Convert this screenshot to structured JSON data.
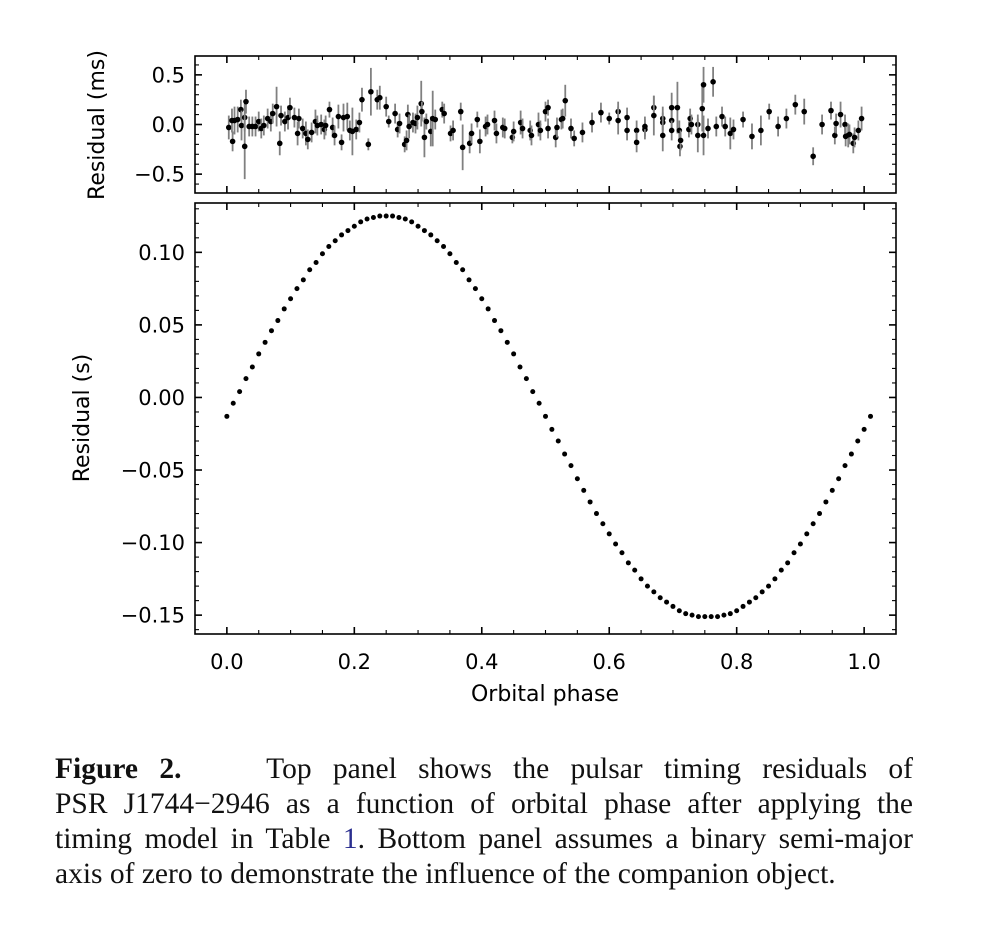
{
  "chart_data": [
    {
      "type": "scatter",
      "panel": "top",
      "ylabel": "Residual (ms)",
      "xlabel": "",
      "xlim": [
        -0.05,
        1.05
      ],
      "ylim": [
        -0.69,
        0.69
      ],
      "yticks": [
        "0.5",
        "0.0",
        "−0.5"
      ],
      "ytick_values": [
        0.5,
        0.0,
        -0.5
      ],
      "error_bars": true,
      "marker_color": "#000000",
      "errorbar_color": "#808080",
      "points": [
        [
          0.003,
          -0.03,
          0.12
        ],
        [
          0.008,
          0.04,
          0.12
        ],
        [
          0.009,
          -0.17,
          0.1
        ],
        [
          0.012,
          0.04,
          0.14
        ],
        [
          0.017,
          0.05,
          0.13
        ],
        [
          0.022,
          0.15,
          0.1
        ],
        [
          0.023,
          -0.01,
          0.15
        ],
        [
          0.028,
          0.07,
          0.14
        ],
        [
          0.028,
          -0.22,
          0.33
        ],
        [
          0.03,
          0.23,
          0.12
        ],
        [
          0.035,
          -0.02,
          0.1
        ],
        [
          0.04,
          -0.02,
          0.1
        ],
        [
          0.045,
          -0.02,
          0.1
        ],
        [
          0.05,
          0.03,
          0.1
        ],
        [
          0.054,
          -0.04,
          0.1
        ],
        [
          0.058,
          -0.01,
          0.1
        ],
        [
          0.064,
          0.06,
          0.1
        ],
        [
          0.069,
          0.03,
          0.1
        ],
        [
          0.072,
          0.11,
          0.1
        ],
        [
          0.078,
          0.18,
          0.2
        ],
        [
          0.083,
          -0.19,
          0.12
        ],
        [
          0.085,
          0.09,
          0.1
        ],
        [
          0.091,
          0.03,
          0.1
        ],
        [
          0.096,
          0.07,
          0.12
        ],
        [
          0.099,
          0.17,
          0.1
        ],
        [
          0.106,
          0.07,
          0.1
        ],
        [
          0.111,
          -0.09,
          0.12
        ],
        [
          0.113,
          0.06,
          0.1
        ],
        [
          0.119,
          -0.04,
          0.1
        ],
        [
          0.124,
          -0.09,
          0.12
        ],
        [
          0.127,
          -0.15,
          0.1
        ],
        [
          0.133,
          -0.08,
          0.1
        ],
        [
          0.139,
          0.03,
          0.12
        ],
        [
          0.142,
          -0.01,
          0.1
        ],
        [
          0.148,
          0.0,
          0.1
        ],
        [
          0.153,
          -0.05,
          0.1
        ],
        [
          0.155,
          -0.01,
          0.1
        ],
        [
          0.161,
          0.15,
          0.08
        ],
        [
          0.166,
          -0.03,
          0.1
        ],
        [
          0.169,
          -0.11,
          0.1
        ],
        [
          0.175,
          0.08,
          0.12
        ],
        [
          0.18,
          -0.18,
          0.08
        ],
        [
          0.183,
          0.07,
          0.14
        ],
        [
          0.189,
          0.08,
          0.14
        ],
        [
          0.193,
          -0.06,
          0.1
        ],
        [
          0.197,
          -0.07,
          0.24
        ],
        [
          0.203,
          -0.05,
          0.1
        ],
        [
          0.208,
          0.02,
          0.1
        ],
        [
          0.212,
          0.25,
          0.12
        ],
        [
          0.222,
          -0.2,
          0.06
        ],
        [
          0.226,
          0.33,
          0.24
        ],
        [
          0.236,
          0.25,
          0.1
        ],
        [
          0.24,
          0.27,
          0.12
        ],
        [
          0.25,
          0.18,
          0.1
        ],
        [
          0.254,
          0.03,
          0.06
        ],
        [
          0.264,
          0.11,
          0.1
        ],
        [
          0.268,
          -0.05,
          0.08
        ],
        [
          0.271,
          0.01,
          0.1
        ],
        [
          0.279,
          -0.2,
          0.08
        ],
        [
          0.282,
          -0.16,
          0.1
        ],
        [
          0.284,
          0.1,
          0.1
        ],
        [
          0.286,
          -0.02,
          0.12
        ],
        [
          0.292,
          0.02,
          0.1
        ],
        [
          0.296,
          0.01,
          0.1
        ],
        [
          0.299,
          0.07,
          0.12
        ],
        [
          0.305,
          0.21,
          0.23
        ],
        [
          0.306,
          0.13,
          0.1
        ],
        [
          0.31,
          -0.13,
          0.2
        ],
        [
          0.313,
          0.03,
          0.08
        ],
        [
          0.32,
          -0.07,
          0.15
        ],
        [
          0.323,
          0.06,
          0.28
        ],
        [
          0.327,
          0.05,
          0.1
        ],
        [
          0.338,
          0.15,
          0.08
        ],
        [
          0.341,
          0.11,
          0.1
        ],
        [
          0.351,
          -0.09,
          0.08
        ],
        [
          0.355,
          -0.06,
          0.1
        ],
        [
          0.367,
          0.13,
          0.09
        ],
        [
          0.37,
          -0.23,
          0.23
        ],
        [
          0.381,
          -0.19,
          0.1
        ],
        [
          0.384,
          -0.09,
          0.1
        ],
        [
          0.393,
          0.05,
          0.08
        ],
        [
          0.397,
          -0.17,
          0.12
        ],
        [
          0.406,
          -0.02,
          0.1
        ],
        [
          0.409,
          0.0,
          0.1
        ],
        [
          0.42,
          0.04,
          0.1
        ],
        [
          0.423,
          -0.09,
          0.1
        ],
        [
          0.433,
          -0.03,
          0.1
        ],
        [
          0.436,
          -0.04,
          0.1
        ],
        [
          0.448,
          -0.13,
          0.06
        ],
        [
          0.45,
          -0.07,
          0.1
        ],
        [
          0.461,
          0.02,
          0.12
        ],
        [
          0.464,
          -0.04,
          0.1
        ],
        [
          0.476,
          -0.06,
          0.1
        ],
        [
          0.478,
          -0.11,
          0.1
        ],
        [
          0.489,
          0.0,
          0.12
        ],
        [
          0.492,
          -0.06,
          0.1
        ],
        [
          0.5,
          0.13,
          0.1
        ],
        [
          0.504,
          0.17,
          0.08
        ],
        [
          0.504,
          -0.04,
          0.1
        ],
        [
          0.516,
          -0.13,
          0.1
        ],
        [
          0.518,
          -0.03,
          0.1
        ],
        [
          0.525,
          0.05,
          0.1
        ],
        [
          0.527,
          0.06,
          0.1
        ],
        [
          0.531,
          0.24,
          0.16
        ],
        [
          0.54,
          -0.04,
          0.1
        ],
        [
          0.545,
          -0.14,
          0.08
        ],
        [
          0.558,
          -0.08,
          0.1
        ],
        [
          0.573,
          0.02,
          0.1
        ],
        [
          0.587,
          0.12,
          0.1
        ],
        [
          0.6,
          0.06,
          0.06
        ],
        [
          0.614,
          0.13,
          0.1
        ],
        [
          0.614,
          0.04,
          0.14
        ],
        [
          0.628,
          0.07,
          0.1
        ],
        [
          0.628,
          -0.06,
          0.1
        ],
        [
          0.643,
          -0.06,
          0.1
        ],
        [
          0.643,
          -0.18,
          0.1
        ],
        [
          0.656,
          -0.05,
          0.1
        ],
        [
          0.656,
          -0.02,
          0.1
        ],
        [
          0.67,
          0.17,
          0.12
        ],
        [
          0.67,
          0.09,
          0.2
        ],
        [
          0.684,
          0.06,
          0.12
        ],
        [
          0.684,
          0.02,
          0.1
        ],
        [
          0.684,
          -0.11,
          0.16
        ],
        [
          0.698,
          0.17,
          0.15
        ],
        [
          0.698,
          0.04,
          0.1
        ],
        [
          0.698,
          -0.06,
          0.1
        ],
        [
          0.707,
          0.17,
          0.26
        ],
        [
          0.71,
          -0.06,
          0.1
        ],
        [
          0.711,
          -0.22,
          0.1
        ],
        [
          0.712,
          -0.16,
          0.1
        ],
        [
          0.725,
          -0.05,
          0.08
        ],
        [
          0.727,
          0.06,
          0.1
        ],
        [
          0.729,
          0.0,
          0.1
        ],
        [
          0.739,
          0.0,
          0.1
        ],
        [
          0.739,
          -0.11,
          0.17
        ],
        [
          0.746,
          0.16,
          0.23
        ],
        [
          0.748,
          0.4,
          0.18
        ],
        [
          0.748,
          -0.11,
          0.2
        ],
        [
          0.755,
          -0.04,
          0.1
        ],
        [
          0.763,
          0.43,
          0.15
        ],
        [
          0.768,
          -0.02,
          0.1
        ],
        [
          0.777,
          0.08,
          0.1
        ],
        [
          0.782,
          -0.02,
          0.1
        ],
        [
          0.79,
          -0.09,
          0.16
        ],
        [
          0.795,
          -0.05,
          0.1
        ],
        [
          0.81,
          0.05,
          0.08
        ],
        [
          0.824,
          -0.12,
          0.13
        ],
        [
          0.838,
          -0.06,
          0.15
        ],
        [
          0.851,
          0.13,
          0.08
        ],
        [
          0.865,
          -0.02,
          0.1
        ],
        [
          0.878,
          0.06,
          0.1
        ],
        [
          0.892,
          0.2,
          0.1
        ],
        [
          0.906,
          0.13,
          0.13
        ],
        [
          0.92,
          -0.32,
          0.09
        ],
        [
          0.934,
          0.0,
          0.1
        ],
        [
          0.948,
          0.14,
          0.09
        ],
        [
          0.954,
          -0.11,
          0.09
        ],
        [
          0.956,
          0.01,
          0.1
        ],
        [
          0.963,
          0.1,
          0.13
        ],
        [
          0.97,
          0.0,
          0.1
        ],
        [
          0.971,
          -0.12,
          0.1
        ],
        [
          0.975,
          -0.11,
          0.12
        ],
        [
          0.977,
          -0.1,
          0.1
        ],
        [
          0.983,
          -0.19,
          0.1
        ],
        [
          0.985,
          -0.13,
          0.1
        ],
        [
          0.991,
          -0.06,
          0.1
        ],
        [
          0.996,
          0.06,
          0.12
        ]
      ]
    },
    {
      "type": "scatter",
      "panel": "bottom",
      "xlabel": "Orbital phase",
      "ylabel": "Residual (s)",
      "xlim": [
        -0.05,
        1.05
      ],
      "ylim": [
        -0.163,
        0.134
      ],
      "xticks": [
        "0.0",
        "0.2",
        "0.4",
        "0.6",
        "0.8",
        "1.0"
      ],
      "xtick_values": [
        0.0,
        0.2,
        0.4,
        0.6,
        0.8,
        1.0
      ],
      "yticks": [
        "0.10",
        "0.05",
        "0.00",
        "−0.05",
        "−0.10",
        "−0.15"
      ],
      "ytick_values": [
        0.1,
        0.05,
        0.0,
        -0.05,
        -0.1,
        -0.15
      ],
      "marker_color": "#000000",
      "x_start": 0.0,
      "x_step": 0.01,
      "y": [
        -0.013,
        -0.004,
        0.004,
        0.013,
        0.021,
        0.03,
        0.038,
        0.046,
        0.053,
        0.061,
        0.068,
        0.075,
        0.081,
        0.088,
        0.093,
        0.099,
        0.104,
        0.108,
        0.112,
        0.115,
        0.118,
        0.121,
        0.123,
        0.124,
        0.125,
        0.125,
        0.125,
        0.124,
        0.123,
        0.121,
        0.118,
        0.115,
        0.112,
        0.108,
        0.104,
        0.099,
        0.093,
        0.088,
        0.081,
        0.075,
        0.068,
        0.061,
        0.053,
        0.046,
        0.038,
        0.03,
        0.021,
        0.013,
        0.004,
        -0.004,
        -0.013,
        -0.022,
        -0.03,
        -0.039,
        -0.047,
        -0.056,
        -0.064,
        -0.072,
        -0.08,
        -0.087,
        -0.094,
        -0.101,
        -0.107,
        -0.114,
        -0.119,
        -0.125,
        -0.13,
        -0.134,
        -0.138,
        -0.141,
        -0.144,
        -0.147,
        -0.149,
        -0.15,
        -0.151,
        -0.151,
        -0.151,
        -0.151,
        -0.15,
        -0.149,
        -0.147,
        -0.144,
        -0.141,
        -0.138,
        -0.134,
        -0.13,
        -0.125,
        -0.119,
        -0.114,
        -0.107,
        -0.101,
        -0.094,
        -0.087,
        -0.08,
        -0.072,
        -0.064,
        -0.056,
        -0.047,
        -0.039,
        -0.03,
        -0.022,
        -0.013
      ]
    }
  ],
  "caption": {
    "label": "Figure 2.",
    "lines": [
      "Top panel shows the pulsar timing residuals of",
      "PSR J1744−2946 as a function of orbital phase after applying the",
      "timing model in Table ",
      "axis of zero to demonstrate the influence of the companion object."
    ],
    "table_ref": "1",
    "line3_rest": ". Bottom panel assumes a binary semi-major",
    "ref_color": "#2b2f8f"
  }
}
